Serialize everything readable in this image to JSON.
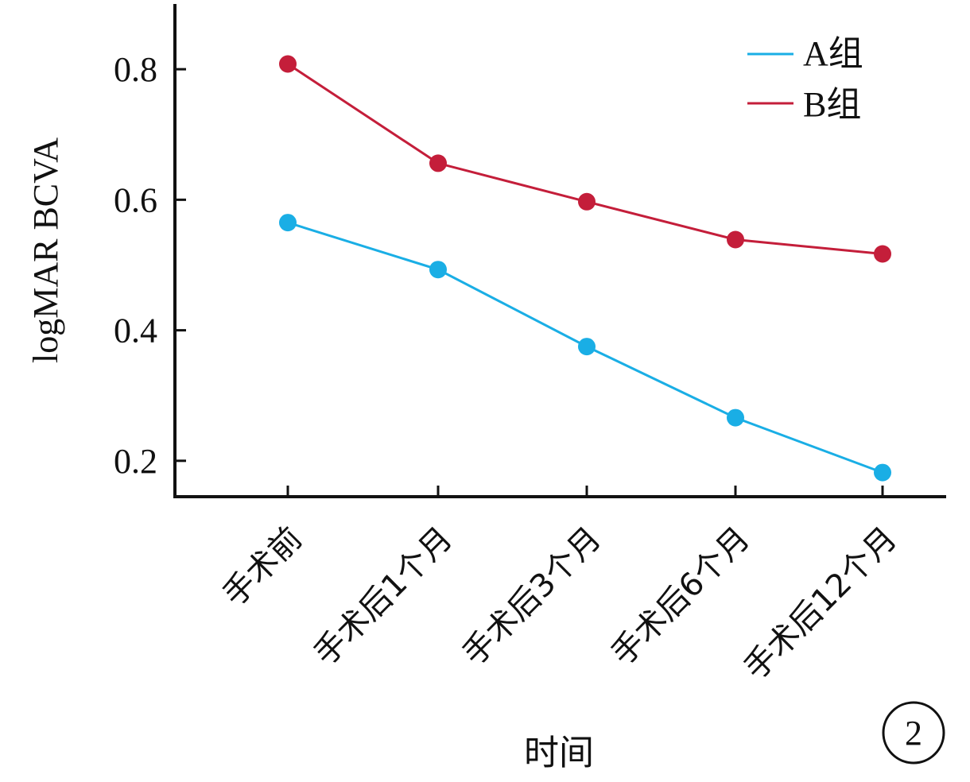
{
  "chart_data": {
    "type": "line",
    "categories": [
      "手术前",
      "手术后1个月",
      "手术后3个月",
      "手术后6个月",
      "手术后12个月"
    ],
    "series": [
      {
        "name": "A组",
        "color": "#1aaee5",
        "values": [
          0.565,
          0.493,
          0.375,
          0.266,
          0.182
        ]
      },
      {
        "name": "B组",
        "color": "#c41e3a",
        "values": [
          0.808,
          0.656,
          0.597,
          0.539,
          0.517
        ]
      }
    ],
    "xlabel": "时间",
    "ylabel": "logMAR BCVA",
    "ylim": [
      0.145,
      0.9
    ],
    "yticks": [
      0.2,
      0.4,
      0.6,
      0.8
    ],
    "ytick_labels": [
      "0.2",
      "0.4",
      "0.6",
      "0.8"
    ],
    "legend_position": "top-right",
    "grid": false,
    "badge": "2"
  }
}
